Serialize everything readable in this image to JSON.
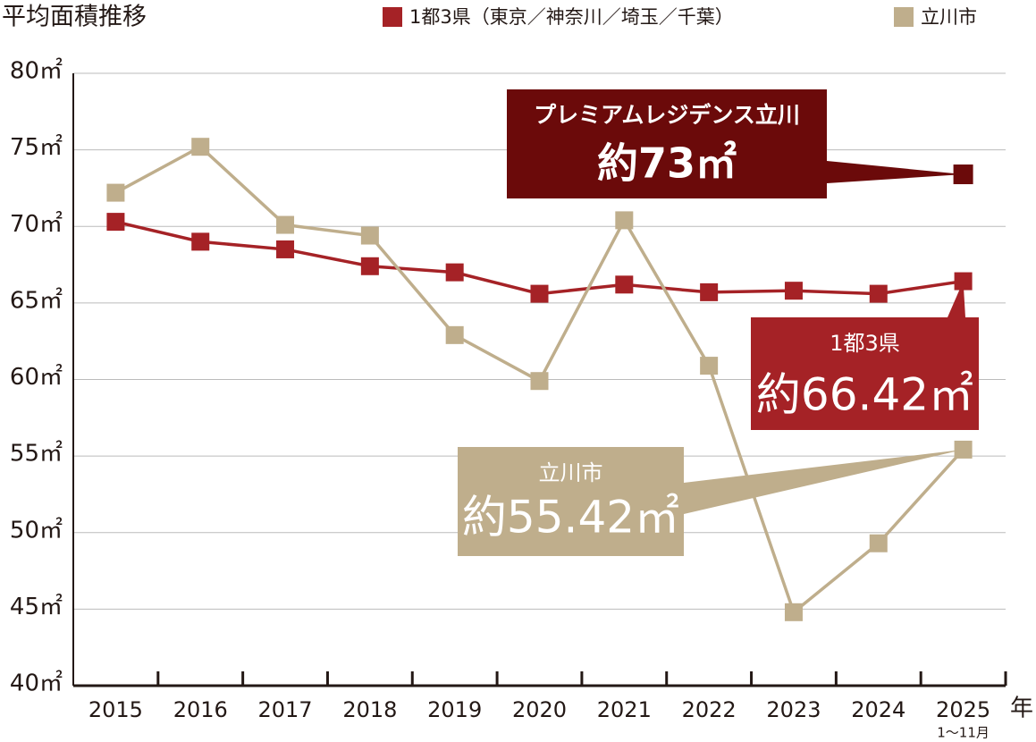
{
  "chart_data": {
    "type": "line",
    "title": "平均面積推移",
    "categories": [
      "2015",
      "2016",
      "2017",
      "2018",
      "2019",
      "2020",
      "2021",
      "2022",
      "2023",
      "2024",
      "2025"
    ],
    "x_unit": "年",
    "x_note": "1〜11月",
    "series": [
      {
        "name": "1都3県（東京／神奈川／埼玉／千葉）",
        "color": "#a52226",
        "values": [
          70.3,
          69.0,
          68.5,
          67.4,
          67.0,
          65.6,
          66.2,
          65.7,
          65.8,
          65.6,
          66.42
        ],
        "callout": {
          "title": "1都3県",
          "label": "約66.42㎡"
        }
      },
      {
        "name": "立川市",
        "color": "#bfae8c",
        "values": [
          72.2,
          75.2,
          70.1,
          69.4,
          62.9,
          59.9,
          70.4,
          60.9,
          44.8,
          49.3,
          55.42
        ],
        "callout": {
          "title": "立川市",
          "label": "約55.42㎡"
        }
      }
    ],
    "highlight": {
      "name": "プレミアムレジデンス立川",
      "value": 73.4,
      "value_label": "約73㎡",
      "color": "#6b0a0a"
    },
    "ylim": [
      40,
      80
    ],
    "yticks": [
      {
        "value": 40,
        "label": "40㎡"
      },
      {
        "value": 45,
        "label": "45㎡"
      },
      {
        "value": 50,
        "label": "50㎡"
      },
      {
        "value": 55,
        "label": "55㎡"
      },
      {
        "value": 60,
        "label": "60㎡"
      },
      {
        "value": 65,
        "label": "65㎡"
      },
      {
        "value": 70,
        "label": "70㎡"
      },
      {
        "value": 75,
        "label": "75㎡"
      },
      {
        "value": 80,
        "label": "80㎡"
      }
    ],
    "grid": true
  }
}
